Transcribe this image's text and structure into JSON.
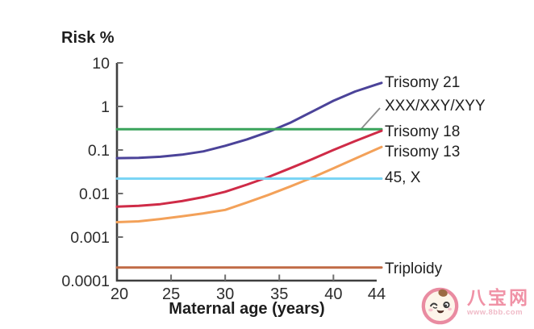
{
  "page": {
    "background": "#ffffff"
  },
  "chart_data": {
    "type": "line",
    "title": "Risk %",
    "xlabel": "Maternal age (years)",
    "ylabel": "Risk %",
    "x_axis": {
      "min": 20,
      "max": 44,
      "ticks": [
        20,
        25,
        30,
        35,
        40,
        44
      ],
      "tick_labels": [
        "20",
        "25",
        "30",
        "35",
        "40",
        "44"
      ]
    },
    "y_axis": {
      "scale": "log",
      "min": 0.0001,
      "max": 10,
      "ticks": [
        10,
        1,
        0.1,
        0.01,
        0.001,
        0.0001
      ],
      "tick_labels": [
        "10",
        "1",
        "0.1",
        "0.01",
        "0.001",
        "0.0001"
      ]
    },
    "grid": false,
    "legend_position": "right-of-plot, labels at line ends",
    "series": [
      {
        "name": "Trisomy 21",
        "color": "#4b4399",
        "style": "curve",
        "points": [
          [
            20,
            0.065
          ],
          [
            22,
            0.066
          ],
          [
            24,
            0.07
          ],
          [
            26,
            0.078
          ],
          [
            28,
            0.093
          ],
          [
            30,
            0.125
          ],
          [
            32,
            0.175
          ],
          [
            34,
            0.26
          ],
          [
            36,
            0.42
          ],
          [
            38,
            0.75
          ],
          [
            40,
            1.35
          ],
          [
            42,
            2.2
          ],
          [
            44,
            3.2
          ]
        ]
      },
      {
        "name": "XXX/XXY/XYY",
        "color": "#3aa35c",
        "style": "flat",
        "value": 0.3,
        "leader_line": true
      },
      {
        "name": "Trisomy 18",
        "color": "#cf2b47",
        "style": "curve",
        "points": [
          [
            20,
            0.005
          ],
          [
            22,
            0.0052
          ],
          [
            24,
            0.0057
          ],
          [
            26,
            0.0067
          ],
          [
            28,
            0.0083
          ],
          [
            30,
            0.011
          ],
          [
            32,
            0.016
          ],
          [
            34,
            0.024
          ],
          [
            36,
            0.038
          ],
          [
            38,
            0.061
          ],
          [
            40,
            0.1
          ],
          [
            42,
            0.16
          ],
          [
            44,
            0.25
          ]
        ]
      },
      {
        "name": "Trisomy 13",
        "color": "#f3a159",
        "style": "curve",
        "points": [
          [
            20,
            0.0022
          ],
          [
            22,
            0.0023
          ],
          [
            24,
            0.0026
          ],
          [
            26,
            0.003
          ],
          [
            28,
            0.0035
          ],
          [
            30,
            0.0042
          ],
          [
            32,
            0.0062
          ],
          [
            34,
            0.0093
          ],
          [
            36,
            0.0145
          ],
          [
            38,
            0.023
          ],
          [
            40,
            0.038
          ],
          [
            42,
            0.063
          ],
          [
            44,
            0.105
          ]
        ]
      },
      {
        "name": "45, X",
        "color": "#7bd5f5",
        "style": "flat",
        "value": 0.022
      },
      {
        "name": "Triploidy",
        "color": "#c06a45",
        "style": "flat",
        "value": 0.0002
      }
    ],
    "leader_color": "#8c8c8c",
    "axis_color": "#3f3f3f",
    "text_color": "#2c2c2c"
  },
  "watermark": {
    "site_name": "八宝网",
    "site_url": "www.8bb.com",
    "brand_color": "#f092a6",
    "url_color": "#f0bac7"
  }
}
